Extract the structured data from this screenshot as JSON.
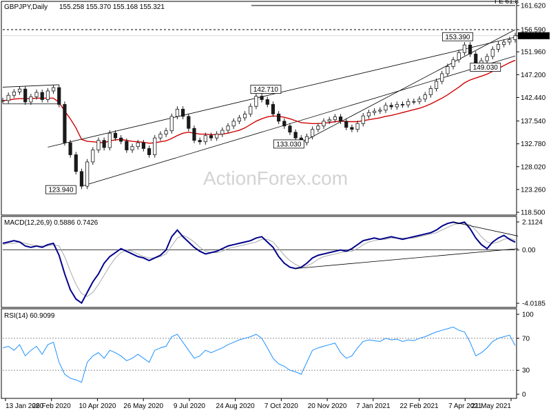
{
  "chart_data": [
    {
      "type": "candlestick",
      "title": "GBPJPY,Daily",
      "ohlc_header": "155.258 155.370 155.168 155.321",
      "x_ticks": [
        "13 Jan 2020",
        "26 Feb 2020",
        "10 Apr 2020",
        "26 May 2020",
        "9 Jul 2020",
        "24 Aug 2020",
        "7 Oct 2020",
        "20 Nov 2020",
        "7 Jan 2021",
        "22 Feb 2021",
        "7 Apr 2021",
        "21 May 2021"
      ],
      "y_ticks": [
        "161.620",
        "156.590",
        "155.321",
        "151.960",
        "147.200",
        "142.440",
        "137.540",
        "132.780",
        "128.020",
        "123.260",
        "118.500"
      ],
      "ylim": [
        118.5,
        161.62
      ],
      "price_labels": [
        {
          "label": "FE 61.8",
          "value": 161.62
        },
        {
          "label": "156.590",
          "value": 156.59
        },
        {
          "label": "155.321",
          "value": 155.321
        }
      ],
      "annotations": [
        {
          "label": "123.940",
          "date": "26 Feb 2020",
          "value": 123.94
        },
        {
          "label": "142.710",
          "date": "Jul 2020",
          "value": 142.71
        },
        {
          "label": "133.030",
          "date": "Sep 2020",
          "value": 133.03
        },
        {
          "label": "153.390",
          "date": "Feb 2021",
          "value": 153.39
        },
        {
          "label": "149.030",
          "date": "Mar 2021",
          "value": 149.03
        }
      ],
      "series": [
        {
          "name": "GBPJPY",
          "color": "#1a1a1a",
          "values": [
            141.8,
            142.9,
            143.6,
            144.2,
            141.5,
            142.6,
            143.5,
            142.0,
            143.8,
            144.5,
            141.0,
            133.0,
            130.5,
            127.0,
            123.94,
            129.0,
            131.5,
            133.5,
            132.0,
            135.0,
            134.0,
            133.3,
            131.5,
            132.2,
            133.0,
            131.8,
            130.5,
            134.0,
            134.8,
            135.5,
            138.5,
            140.0,
            138.5,
            136.0,
            133.5,
            133.2,
            134.5,
            134.0,
            134.8,
            135.6,
            136.5,
            137.5,
            138.2,
            139.0,
            140.6,
            142.71,
            142.0,
            141.0,
            139.0,
            137.5,
            136.5,
            135.2,
            134.0,
            133.03,
            134.3,
            135.8,
            136.5,
            137.5,
            137.8,
            138.4,
            137.5,
            136.2,
            135.8,
            137.0,
            138.6,
            139.3,
            139.6,
            139.8,
            140.8,
            140.5,
            141.0,
            140.9,
            141.6,
            141.6,
            142.1,
            143.0,
            144.3,
            145.8,
            147.4,
            148.9,
            150.3,
            151.8,
            153.39,
            151.5,
            149.03,
            150.1,
            151.0,
            152.5,
            153.5,
            154.0,
            154.5,
            155.321
          ]
        },
        {
          "name": "EMA",
          "color": "#d00000",
          "values": [
            141.8,
            141.9,
            142.1,
            142.2,
            142.2,
            142.2,
            142.3,
            142.3,
            142.3,
            142.3,
            141.4,
            139.6,
            138.0,
            136.1,
            133.7,
            133.3,
            133.2,
            133.1,
            133.0,
            133.4,
            133.6,
            133.7,
            133.5,
            133.3,
            133.2,
            133.1,
            132.9,
            133.0,
            133.2,
            133.4,
            133.9,
            134.5,
            135.0,
            135.2,
            135.0,
            134.8,
            134.8,
            134.7,
            134.7,
            134.8,
            135.0,
            135.3,
            135.6,
            136.1,
            136.8,
            137.5,
            138.0,
            138.4,
            138.6,
            138.5,
            138.3,
            138.0,
            137.6,
            137.2,
            137.1,
            137.0,
            137.0,
            137.1,
            137.2,
            137.4,
            137.5,
            137.4,
            137.4,
            137.4,
            137.6,
            137.8,
            138.0,
            138.2,
            138.5,
            138.7,
            139.0,
            139.3,
            139.6,
            139.9,
            140.2,
            140.6,
            141.1,
            141.7,
            142.3,
            143.0,
            143.8,
            144.6,
            145.5,
            146.1,
            146.5,
            146.9,
            147.3,
            147.9,
            148.5,
            149.1,
            149.7,
            150.2
          ]
        }
      ]
    },
    {
      "type": "line",
      "title": "MACD(12,26,9) 0.5886 0.7426",
      "y_ticks": [
        "2.1124",
        "0.00",
        "-4.0185"
      ],
      "ylim": [
        -4.0185,
        2.1124
      ],
      "series": [
        {
          "name": "MACD",
          "color": "#00008b",
          "values": [
            0.5,
            0.6,
            0.7,
            0.6,
            0.3,
            0.2,
            0.3,
            0.2,
            0.4,
            0.5,
            -0.4,
            -1.8,
            -3.0,
            -3.7,
            -4.0,
            -3.2,
            -2.4,
            -1.8,
            -1.0,
            -0.5,
            -0.2,
            0.1,
            -0.1,
            -0.3,
            -0.5,
            -0.6,
            -0.8,
            -0.6,
            -0.4,
            0.0,
            1.0,
            1.5,
            1.0,
            0.6,
            0.2,
            -0.1,
            -0.3,
            -0.2,
            -0.1,
            0.1,
            0.3,
            0.4,
            0.5,
            0.6,
            0.7,
            0.9,
            1.0,
            0.6,
            0.2,
            -0.5,
            -1.0,
            -1.3,
            -1.4,
            -1.3,
            -1.0,
            -0.6,
            -0.4,
            -0.3,
            -0.2,
            -0.1,
            0.0,
            -0.1,
            0.1,
            0.4,
            0.7,
            0.8,
            0.9,
            0.8,
            0.9,
            1.0,
            0.9,
            0.8,
            0.9,
            1.0,
            1.1,
            1.2,
            1.3,
            1.5,
            1.8,
            2.0,
            2.1,
            2.0,
            2.1,
            1.6,
            0.9,
            0.4,
            0.1,
            0.6,
            0.9,
            1.1,
            0.8,
            0.59
          ]
        },
        {
          "name": "Signal",
          "color": "#a9a9a9",
          "values": [
            0.4,
            0.5,
            0.5,
            0.6,
            0.5,
            0.4,
            0.3,
            0.3,
            0.3,
            0.4,
            0.3,
            -0.5,
            -1.6,
            -2.6,
            -3.3,
            -3.5,
            -3.2,
            -2.6,
            -1.9,
            -1.2,
            -0.6,
            -0.2,
            0.0,
            -0.1,
            -0.3,
            -0.5,
            -0.6,
            -0.6,
            -0.5,
            -0.3,
            0.3,
            0.9,
            1.1,
            0.9,
            0.6,
            0.2,
            -0.1,
            -0.2,
            -0.2,
            -0.1,
            0.1,
            0.2,
            0.3,
            0.4,
            0.5,
            0.6,
            0.8,
            0.8,
            0.6,
            0.1,
            -0.4,
            -0.8,
            -1.1,
            -1.3,
            -1.2,
            -1.0,
            -0.7,
            -0.5,
            -0.4,
            -0.3,
            -0.2,
            -0.1,
            -0.1,
            0.1,
            0.4,
            0.6,
            0.7,
            0.8,
            0.8,
            0.9,
            0.9,
            0.9,
            0.9,
            0.9,
            1.0,
            1.1,
            1.2,
            1.3,
            1.5,
            1.7,
            1.9,
            2.0,
            2.0,
            1.9,
            1.5,
            1.0,
            0.6,
            0.5,
            0.6,
            0.8,
            0.9,
            0.74
          ]
        }
      ]
    },
    {
      "type": "line",
      "title": "RSI(14) 60.9099",
      "y_ticks": [
        "100",
        "70",
        "30",
        "0"
      ],
      "ylim": [
        0,
        100
      ],
      "series": [
        {
          "name": "RSI",
          "color": "#1e90ff",
          "values": [
            58,
            60,
            55,
            62,
            48,
            55,
            60,
            50,
            62,
            65,
            40,
            25,
            20,
            18,
            15,
            40,
            48,
            52,
            45,
            55,
            52,
            48,
            42,
            45,
            50,
            45,
            40,
            55,
            58,
            60,
            72,
            75,
            65,
            55,
            45,
            48,
            55,
            52,
            55,
            58,
            62,
            65,
            68,
            70,
            72,
            75,
            70,
            58,
            45,
            38,
            35,
            30,
            28,
            25,
            40,
            55,
            58,
            60,
            62,
            64,
            52,
            45,
            48,
            58,
            66,
            68,
            67,
            66,
            70,
            68,
            69,
            66,
            68,
            67,
            70,
            72,
            75,
            78,
            80,
            82,
            84,
            80,
            78,
            65,
            48,
            52,
            58,
            66,
            70,
            72,
            74,
            60.9
          ]
        }
      ]
    }
  ],
  "watermark": "ActionForex.com"
}
